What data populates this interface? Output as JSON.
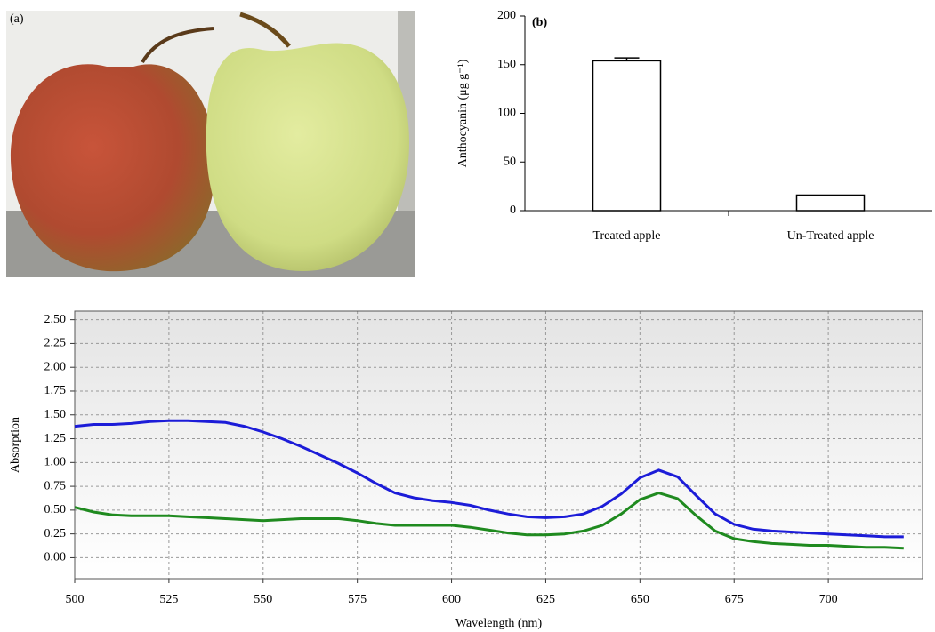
{
  "photo": {
    "label": "(a)"
  },
  "chart_data": [
    {
      "type": "bar",
      "panel_label": "(b)",
      "ylabel": "Anthocyanin (μg g⁻¹)",
      "categories": [
        "Treated apple",
        "Un-Treated apple"
      ],
      "values": [
        154,
        16
      ],
      "errors": [
        3,
        null
      ],
      "color": "#ffffff",
      "ylim": [
        0,
        200
      ],
      "yticks": [
        0,
        50,
        100,
        150,
        200
      ],
      "grid": false
    },
    {
      "type": "line",
      "xlabel": "Wavelength (nm)",
      "ylabel": "Absorption",
      "x": [
        500,
        505,
        510,
        515,
        520,
        525,
        530,
        535,
        540,
        545,
        550,
        555,
        560,
        565,
        570,
        575,
        580,
        585,
        590,
        595,
        600,
        605,
        610,
        615,
        620,
        625,
        630,
        635,
        640,
        645,
        650,
        655,
        660,
        665,
        670,
        675,
        680,
        685,
        690,
        695,
        700,
        705,
        710,
        715,
        720
      ],
      "series": [
        {
          "color": "#1c1cd8",
          "values": [
            1.38,
            1.4,
            1.4,
            1.41,
            1.43,
            1.44,
            1.44,
            1.43,
            1.42,
            1.38,
            1.32,
            1.25,
            1.17,
            1.08,
            0.99,
            0.89,
            0.78,
            0.68,
            0.63,
            0.6,
            0.58,
            0.55,
            0.5,
            0.46,
            0.43,
            0.42,
            0.43,
            0.46,
            0.54,
            0.67,
            0.84,
            0.92,
            0.85,
            0.65,
            0.46,
            0.35,
            0.3,
            0.28,
            0.27,
            0.26,
            0.25,
            0.24,
            0.23,
            0.22,
            0.22
          ]
        },
        {
          "color": "#1f8a1f",
          "values": [
            0.53,
            0.48,
            0.45,
            0.44,
            0.44,
            0.44,
            0.43,
            0.42,
            0.41,
            0.4,
            0.39,
            0.4,
            0.41,
            0.41,
            0.41,
            0.39,
            0.36,
            0.34,
            0.34,
            0.34,
            0.34,
            0.32,
            0.29,
            0.26,
            0.24,
            0.24,
            0.25,
            0.28,
            0.34,
            0.46,
            0.61,
            0.68,
            0.62,
            0.44,
            0.28,
            0.2,
            0.17,
            0.15,
            0.14,
            0.13,
            0.13,
            0.12,
            0.11,
            0.11,
            0.1
          ]
        }
      ],
      "xlim": [
        500,
        725
      ],
      "xticks": [
        500,
        525,
        550,
        575,
        600,
        625,
        650,
        675,
        700
      ],
      "ylim": [
        -0.22,
        2.59
      ],
      "yticks": [
        {
          "value": 0,
          "label": "0.00"
        },
        {
          "value": 0.25,
          "label": "0.25"
        },
        {
          "value": 0.5,
          "label": "0.50"
        },
        {
          "value": 0.75,
          "label": "0.75"
        },
        {
          "value": 1,
          "label": "1.00"
        },
        {
          "value": 1.25,
          "label": "1.25"
        },
        {
          "value": 1.5,
          "label": "1.50"
        },
        {
          "value": 1.75,
          "label": "1.75"
        },
        {
          "value": 2,
          "label": "2.00"
        },
        {
          "value": 2.25,
          "label": "2.25"
        },
        {
          "value": 2.5,
          "label": "2.50"
        }
      ],
      "grid": true
    }
  ]
}
